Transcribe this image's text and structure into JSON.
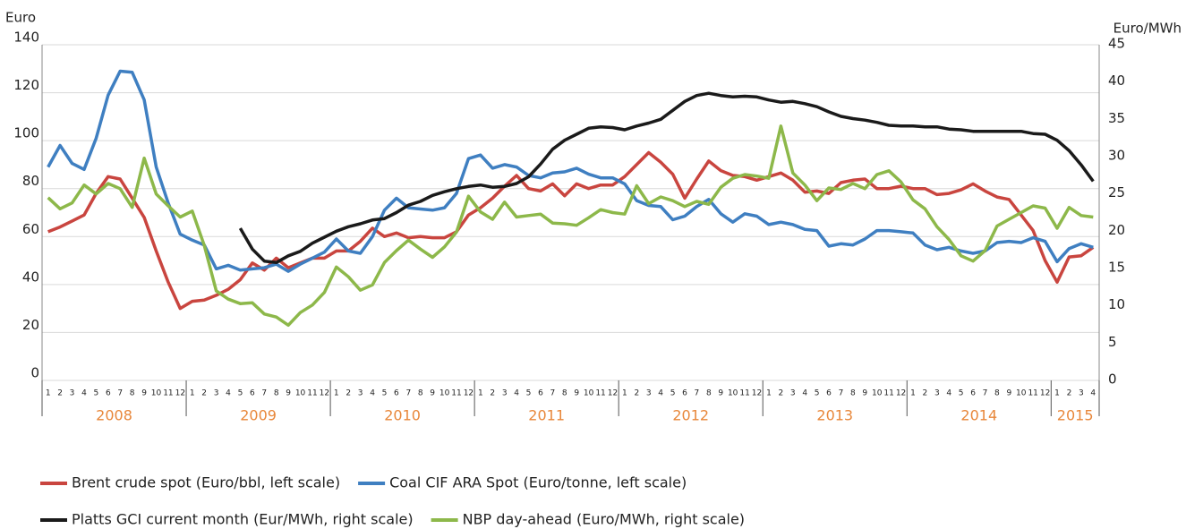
{
  "chart_data": {
    "type": "line",
    "y_label": "Euro",
    "y2_label": "Euro/MWh",
    "categories": [
      "1",
      "2",
      "3",
      "4",
      "5",
      "6",
      "7",
      "8",
      "9",
      "10",
      "11",
      "12",
      "1",
      "2",
      "3",
      "4",
      "5",
      "6",
      "7",
      "8",
      "9",
      "10",
      "11",
      "12",
      "1",
      "2",
      "3",
      "4",
      "5",
      "6",
      "7",
      "8",
      "9",
      "10",
      "11",
      "12",
      "1",
      "2",
      "3",
      "4",
      "5",
      "6",
      "7",
      "8",
      "9",
      "10",
      "11",
      "12",
      "1",
      "2",
      "3",
      "4",
      "5",
      "6",
      "7",
      "8",
      "9",
      "10",
      "11",
      "12",
      "1",
      "2",
      "3",
      "4",
      "5",
      "6",
      "7",
      "8",
      "9",
      "10",
      "11",
      "12",
      "1",
      "2",
      "3",
      "4",
      "5",
      "6",
      "7",
      "8",
      "9",
      "10",
      "11",
      "12",
      "1",
      "2",
      "3",
      "4"
    ],
    "x_groups": [
      "2008",
      "2009",
      "2010",
      "2011",
      "2012",
      "2013",
      "2014",
      "2015"
    ],
    "ylim": [
      0,
      140
    ],
    "yticks": [
      0,
      20,
      40,
      60,
      80,
      100,
      120,
      140
    ],
    "y2lim": [
      0,
      45
    ],
    "y2ticks": [
      0,
      5,
      10,
      15,
      20,
      25,
      30,
      35,
      40,
      45
    ],
    "grid": true,
    "series": [
      {
        "name": "Brent crude spot (Euro/bbl, left scale)",
        "color": "#c9453f",
        "values": [
          62,
          64,
          66.5,
          69,
          78,
          85,
          84,
          76,
          68,
          54,
          41,
          30,
          33,
          33.5,
          35.5,
          38,
          42,
          49,
          46,
          51,
          47,
          49,
          51,
          51,
          54,
          54,
          58,
          63.5,
          60,
          61.5,
          59.5,
          60,
          59.5,
          59.5,
          62,
          69,
          72,
          76,
          81,
          85.5,
          80,
          79,
          82,
          77,
          82,
          80,
          81.5,
          81.5,
          85,
          90,
          95,
          91,
          86,
          76,
          84,
          91.5,
          87.5,
          85.5,
          85,
          83.5,
          85,
          86.5,
          83.5,
          78.5,
          79,
          78,
          82.5,
          83.5,
          84,
          80,
          80,
          81,
          80,
          80,
          77.5,
          78,
          79.5,
          82,
          79,
          76.5,
          75.5,
          69,
          62.5,
          50,
          41,
          51.5,
          52,
          55.5
        ]
      },
      {
        "name": "Coal CIF ARA Spot (Euro/tonne, left scale)",
        "color": "#3f7fc1",
        "values": [
          89,
          98,
          90.5,
          88,
          101,
          119,
          129,
          128.5,
          117,
          89,
          74,
          61,
          58.5,
          56.5,
          46.5,
          48,
          46,
          46.5,
          47,
          48.5,
          45.5,
          48.5,
          51,
          53.5,
          59,
          54,
          53,
          60,
          71,
          76,
          72,
          71.5,
          71,
          72,
          78,
          92.5,
          94,
          88.5,
          90,
          89,
          85.5,
          84.5,
          86.5,
          87,
          88.5,
          86,
          84.5,
          84.5,
          82,
          75,
          73,
          72.5,
          67,
          68.5,
          72.5,
          75.5,
          69.5,
          66,
          69.5,
          68.5,
          65,
          66,
          65,
          63,
          62.5,
          56,
          57,
          56.5,
          59,
          62.5,
          62.5,
          62,
          61.5,
          56.5,
          54.5,
          55.5,
          54,
          53,
          54,
          57.5,
          58,
          57.5,
          59.5,
          58,
          49.5,
          55,
          57,
          55.5
        ]
      },
      {
        "name": "Platts GCI current month (Eur/MWh, right scale)",
        "color": "#1a1a1a",
        "axis": "y2",
        "values": [
          null,
          null,
          null,
          null,
          null,
          null,
          null,
          null,
          null,
          null,
          null,
          null,
          null,
          null,
          null,
          null,
          20.4,
          17.6,
          16,
          15.8,
          16.7,
          17.3,
          18.4,
          19.2,
          20,
          20.6,
          21,
          21.5,
          21.7,
          22.5,
          23.5,
          24,
          24.8,
          25.3,
          25.7,
          26,
          26.2,
          25.9,
          26,
          26.4,
          27.3,
          29,
          31,
          32.2,
          33,
          33.8,
          34,
          33.9,
          33.6,
          34.1,
          34.5,
          35,
          36.2,
          37.4,
          38.2,
          38.5,
          38.2,
          38,
          38.1,
          38,
          37.6,
          37.3,
          37.4,
          37.1,
          36.7,
          36,
          35.4,
          35.1,
          34.9,
          34.6,
          34.2,
          34.1,
          34.1,
          34,
          34,
          33.7,
          33.6,
          33.4,
          33.4,
          33.4,
          33.4,
          33.4,
          33.1,
          33,
          32.2,
          30.8,
          28.9,
          26.7
        ]
      },
      {
        "name": "NBP day-ahead (Euro/MWh, right scale)",
        "color": "#8db84a",
        "axis": "y2",
        "values": [
          24.5,
          23,
          23.8,
          26.2,
          25,
          26.4,
          25.7,
          23.2,
          29.8,
          25,
          23.4,
          21.9,
          22.7,
          18.1,
          12,
          10.9,
          10.3,
          10.4,
          8.9,
          8.5,
          7.4,
          9.1,
          10.1,
          11.8,
          15.2,
          13.9,
          12.1,
          12.8,
          15.8,
          17.4,
          18.8,
          17.6,
          16.5,
          17.9,
          19.9,
          24.7,
          22.6,
          21.6,
          23.9,
          21.9,
          22.1,
          22.3,
          21.1,
          21,
          20.8,
          21.8,
          22.9,
          22.5,
          22.3,
          26.1,
          23.7,
          24.6,
          24.1,
          23.3,
          24,
          23.6,
          25.9,
          27.1,
          27.6,
          27.4,
          27.1,
          34.1,
          27.8,
          26.2,
          24.1,
          25.8,
          25.6,
          26.4,
          25.7,
          27.6,
          28.1,
          26.6,
          24.2,
          23,
          20.6,
          18.9,
          16.7,
          16,
          17.4,
          20.7,
          21.6,
          22.5,
          23.4,
          23.1,
          20.4,
          23.2,
          22.1,
          21.9
        ]
      }
    ]
  }
}
